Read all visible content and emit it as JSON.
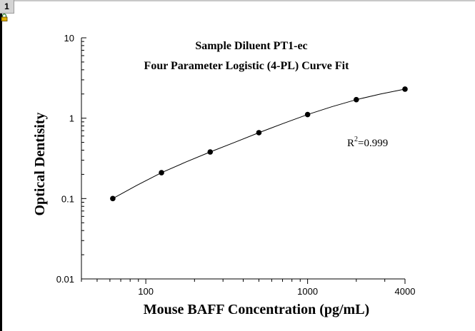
{
  "window": {
    "page_number": "1",
    "lock_icon": "lock-icon"
  },
  "chart_data": {
    "type": "scatter",
    "title": "Sample Diluent PT1-ec",
    "subtitle": "Four Parameter Logistic (4-PL) Curve Fit",
    "xlabel": "Mouse BAFF Concentration (pg/mL)",
    "ylabel": "Optical Dentisity",
    "x_scale": "log",
    "y_scale": "log",
    "xlim": [
      40,
      4000
    ],
    "ylim": [
      0.01,
      10
    ],
    "x_ticks": [
      {
        "value": 100,
        "label": "100"
      },
      {
        "value": 1000,
        "label": "1000"
      },
      {
        "value": 4000,
        "label": "4000"
      }
    ],
    "y_ticks": [
      {
        "value": 0.01,
        "label": "0.01"
      },
      {
        "value": 0.1,
        "label": "0.1"
      },
      {
        "value": 1,
        "label": "1"
      },
      {
        "value": 10,
        "label": "10"
      }
    ],
    "grid": false,
    "series": [
      {
        "x": [
          62.5,
          125,
          250,
          500,
          1000,
          2000,
          4000
        ],
        "y": [
          0.1,
          0.21,
          0.38,
          0.66,
          1.11,
          1.7,
          2.3
        ]
      }
    ],
    "fit_curve": {
      "model": "4-PL",
      "x": [
        62.5,
        88,
        125,
        177,
        250,
        354,
        500,
        707,
        1000,
        1414,
        2000,
        2828,
        4000
      ],
      "y": [
        0.1,
        0.146,
        0.21,
        0.285,
        0.38,
        0.5,
        0.66,
        0.86,
        1.11,
        1.39,
        1.7,
        2.0,
        2.3
      ]
    },
    "annotation": {
      "prefix": "R",
      "superscript": "2",
      "text": "=0.999"
    }
  }
}
